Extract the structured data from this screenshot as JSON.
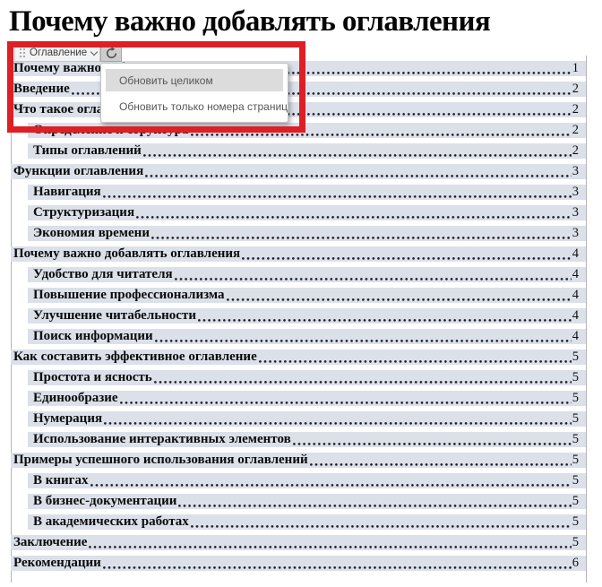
{
  "page": {
    "title": "Почему важно добавлять оглавления"
  },
  "toc_control": {
    "tab_label": "Оглавление",
    "icons": {
      "drag_handle": "drag-dots-icon",
      "dropdown": "chevron-down-icon",
      "refresh": "refresh-circular-arrow-icon"
    }
  },
  "update_menu": {
    "items": [
      {
        "label": "Обновить целиком",
        "highlighted": true
      },
      {
        "label": "Обновить только номера страниц",
        "highlighted": false
      }
    ]
  },
  "annotation": {
    "type": "highlight-rectangle",
    "color": "#dc2026"
  },
  "colors": {
    "row_shading": "#dbe0e9",
    "menu_highlight": "#dcdcdc",
    "title_text": "#050505"
  },
  "toc": {
    "entries": [
      {
        "text": "Почему важно добавлять оглавления",
        "level": 1,
        "page": "1"
      },
      {
        "text": "Введение",
        "level": 1,
        "page": "2"
      },
      {
        "text": "Что такое оглавление",
        "level": 1,
        "page": "2"
      },
      {
        "text": "Определение и структура",
        "level": 2,
        "page": "2"
      },
      {
        "text": "Типы оглавлений",
        "level": 2,
        "page": "2"
      },
      {
        "text": "Функции оглавления",
        "level": 1,
        "page": "3"
      },
      {
        "text": "Навигация",
        "level": 2,
        "page": "3"
      },
      {
        "text": "Структуризация",
        "level": 2,
        "page": "3"
      },
      {
        "text": "Экономия времени",
        "level": 2,
        "page": "3"
      },
      {
        "text": "Почему важно добавлять оглавления",
        "level": 1,
        "page": "4"
      },
      {
        "text": "Удобство для читателя",
        "level": 2,
        "page": "4"
      },
      {
        "text": "Повышение профессионализма",
        "level": 2,
        "page": "4"
      },
      {
        "text": "Улучшение читабельности",
        "level": 2,
        "page": "4"
      },
      {
        "text": "Поиск информации",
        "level": 2,
        "page": "4"
      },
      {
        "text": "Как составить эффективное оглавление",
        "level": 1,
        "page": "5"
      },
      {
        "text": "Простота и ясность",
        "level": 2,
        "page": "5"
      },
      {
        "text": "Единообразие",
        "level": 2,
        "page": "5"
      },
      {
        "text": "Нумерация",
        "level": 2,
        "page": "5"
      },
      {
        "text": "Использование интерактивных элементов",
        "level": 2,
        "page": "5"
      },
      {
        "text": "Примеры успешного использования оглавлений",
        "level": 1,
        "page": "5"
      },
      {
        "text": "В книгах",
        "level": 2,
        "page": "5"
      },
      {
        "text": "В бизнес-документации",
        "level": 2,
        "page": "5"
      },
      {
        "text": "В академических работах",
        "level": 2,
        "page": "5"
      },
      {
        "text": "Заключение",
        "level": 1,
        "page": "5"
      },
      {
        "text": "Рекомендации",
        "level": 1,
        "page": "6"
      }
    ]
  }
}
